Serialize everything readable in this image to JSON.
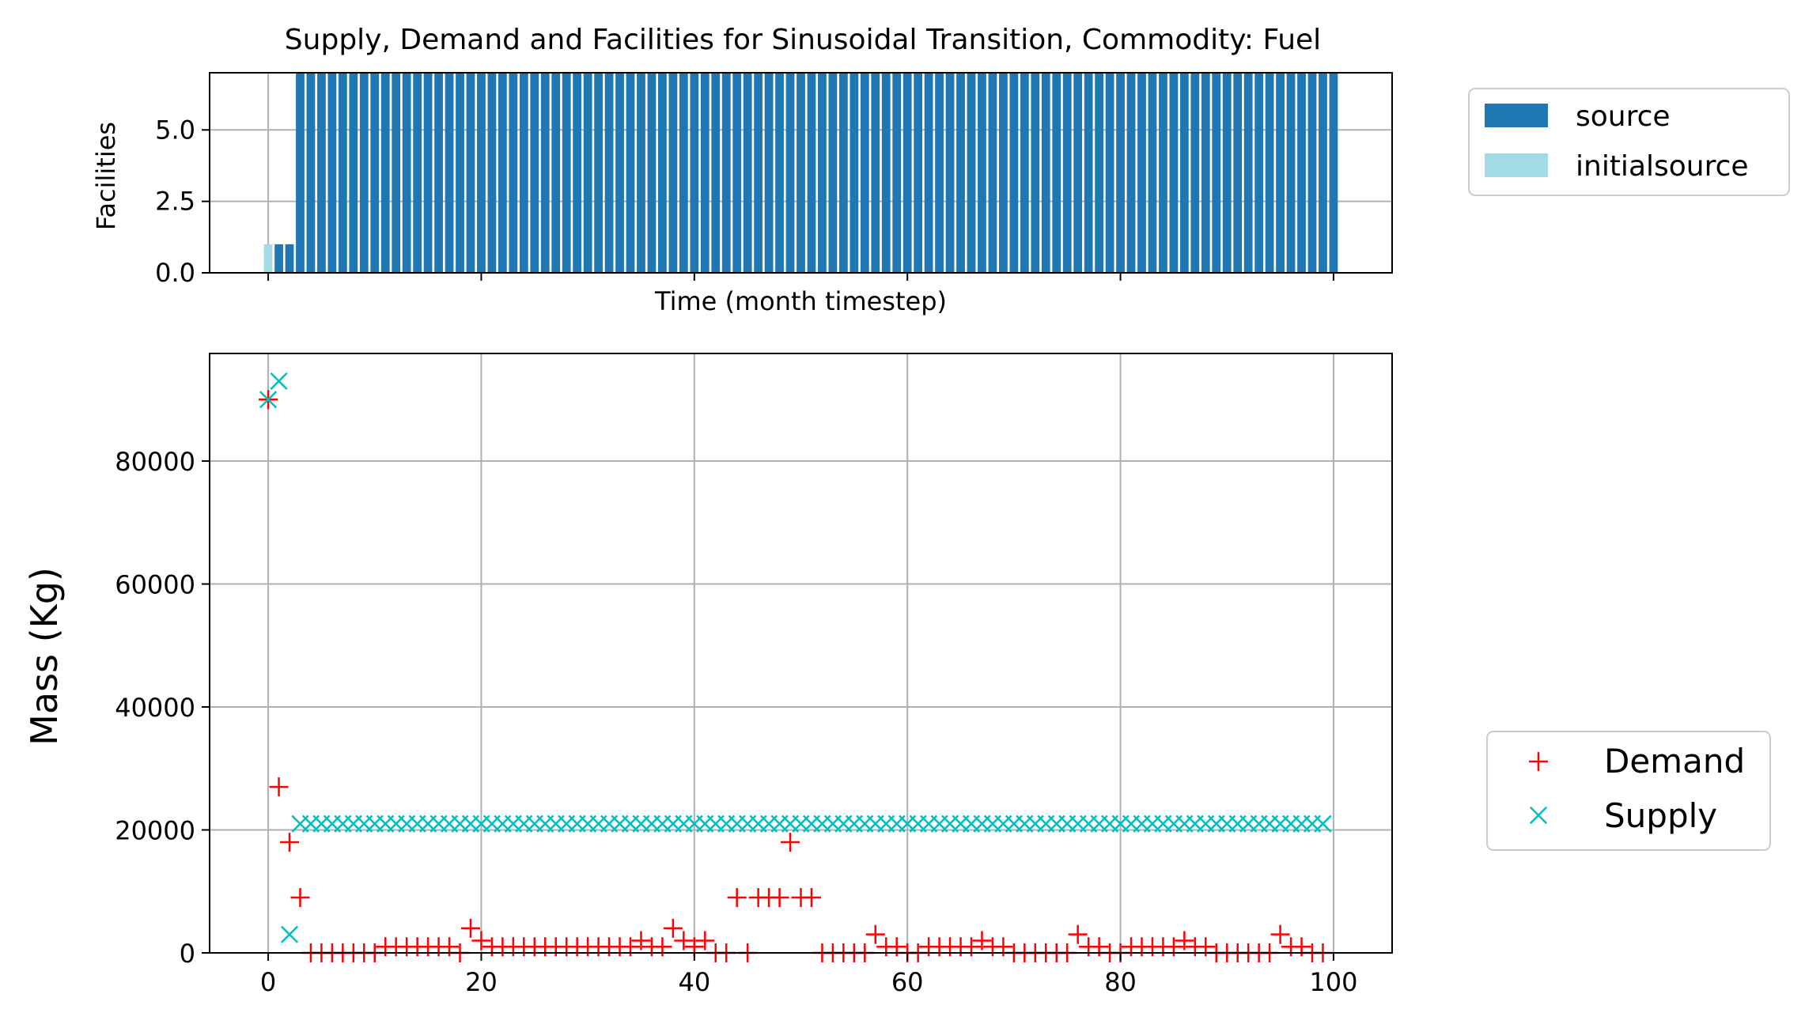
{
  "title": "Supply, Demand and Facilities for Sinusoidal Transition, Commodity: Fuel",
  "colors": {
    "source": "#1f77b4",
    "initialsource": "#a2dae6",
    "demand": "#ff0000",
    "supply": "#00bfbf",
    "grid": "#b0b0b0"
  },
  "chart_data": [
    {
      "type": "bar",
      "ylabel": "Facilities",
      "xlabel": "Time (month timestep)",
      "xlim": [
        -5.5,
        105.5
      ],
      "ylim": [
        0,
        7
      ],
      "yticks": [
        "0.0",
        "2.5",
        "5.0"
      ],
      "ytick_values": [
        0,
        2.5,
        5
      ],
      "xtick_values": [
        0,
        20,
        40,
        60,
        80,
        100
      ],
      "grid": true,
      "legend_position": "outside-top-right",
      "series": [
        {
          "name": "source",
          "start": 1,
          "end": 100,
          "values_note_levels": {
            "1": 1,
            "2": 1
          },
          "default": 7
        },
        {
          "name": "initialsource",
          "x": [
            0
          ],
          "values": [
            1
          ]
        }
      ]
    },
    {
      "type": "scatter",
      "ylabel": "Mass (Kg)",
      "xlim": [
        -5.5,
        105.5
      ],
      "ylim": [
        0,
        97500
      ],
      "yticks": [
        "0",
        "20000",
        "40000",
        "60000",
        "80000"
      ],
      "ytick_values": [
        0,
        20000,
        40000,
        60000,
        80000
      ],
      "xticks": [
        "0",
        "20",
        "40",
        "60",
        "80",
        "100"
      ],
      "xtick_values": [
        0,
        20,
        40,
        60,
        80,
        100
      ],
      "grid": true,
      "legend_position": "outside-bottom-right",
      "series": [
        {
          "name": "Demand",
          "marker": "+",
          "x": [
            0,
            1,
            2,
            3,
            4,
            5,
            6,
            7,
            8,
            9,
            10,
            11,
            12,
            13,
            14,
            15,
            16,
            17,
            18,
            19,
            20,
            21,
            22,
            23,
            24,
            25,
            26,
            27,
            28,
            29,
            30,
            31,
            32,
            33,
            34,
            35,
            36,
            37,
            38,
            39,
            40,
            41,
            42,
            43,
            44,
            45,
            46,
            47,
            48,
            49,
            50,
            51,
            52,
            53,
            54,
            55,
            56,
            57,
            58,
            59,
            60,
            61,
            62,
            63,
            64,
            65,
            66,
            67,
            68,
            69,
            70,
            71,
            72,
            73,
            74,
            75,
            76,
            77,
            78,
            79,
            80,
            81,
            82,
            83,
            84,
            85,
            86,
            87,
            88,
            89,
            90,
            91,
            92,
            93,
            94,
            95,
            96,
            97,
            98,
            99
          ],
          "values": [
            90000,
            27000,
            18000,
            9000,
            0,
            0,
            0,
            0,
            0,
            0,
            0,
            1000,
            1000,
            1000,
            1000,
            1000,
            1000,
            1000,
            0,
            4000,
            2000,
            1000,
            1000,
            1000,
            1000,
            1000,
            1000,
            1000,
            1000,
            1000,
            1000,
            1000,
            1000,
            1000,
            1000,
            2000,
            1000,
            1000,
            4000,
            2000,
            1000,
            2000,
            0,
            0,
            9000,
            0,
            9000,
            9000,
            9000,
            18000,
            9000,
            9000,
            0,
            0,
            0,
            0,
            0,
            3000,
            1000,
            1000,
            0,
            0,
            1000,
            1000,
            1000,
            1000,
            1000,
            2000,
            1000,
            1000,
            0,
            0,
            0,
            0,
            0,
            0,
            3000,
            1000,
            1000,
            0,
            0,
            1000,
            1000,
            1000,
            1000,
            1000,
            2000,
            1000,
            1000,
            0,
            0,
            0,
            0,
            0,
            0,
            3000,
            1000,
            1000,
            0,
            0
          ]
        },
        {
          "name": "Supply",
          "marker": "x",
          "x": [
            0,
            1,
            2,
            3,
            4,
            5,
            6,
            7,
            8,
            9,
            10,
            11,
            12,
            13,
            14,
            15,
            16,
            17,
            18,
            19,
            20,
            21,
            22,
            23,
            24,
            25,
            26,
            27,
            28,
            29,
            30,
            31,
            32,
            33,
            34,
            35,
            36,
            37,
            38,
            39,
            40,
            41,
            42,
            43,
            44,
            45,
            46,
            47,
            48,
            49,
            50,
            51,
            52,
            53,
            54,
            55,
            56,
            57,
            58,
            59,
            60,
            61,
            62,
            63,
            64,
            65,
            66,
            67,
            68,
            69,
            70,
            71,
            72,
            73,
            74,
            75,
            76,
            77,
            78,
            79,
            80,
            81,
            82,
            83,
            84,
            85,
            86,
            87,
            88,
            89,
            90,
            91,
            92,
            93,
            94,
            95,
            96,
            97,
            98,
            99
          ],
          "values": [
            90000,
            93000,
            3000,
            21000,
            21000,
            21000,
            21000,
            21000,
            21000,
            21000,
            21000,
            21000,
            21000,
            21000,
            21000,
            21000,
            21000,
            21000,
            21000,
            21000,
            21000,
            21000,
            21000,
            21000,
            21000,
            21000,
            21000,
            21000,
            21000,
            21000,
            21000,
            21000,
            21000,
            21000,
            21000,
            21000,
            21000,
            21000,
            21000,
            21000,
            21000,
            21000,
            21000,
            21000,
            21000,
            21000,
            21000,
            21000,
            21000,
            21000,
            21000,
            21000,
            21000,
            21000,
            21000,
            21000,
            21000,
            21000,
            21000,
            21000,
            21000,
            21000,
            21000,
            21000,
            21000,
            21000,
            21000,
            21000,
            21000,
            21000,
            21000,
            21000,
            21000,
            21000,
            21000,
            21000,
            21000,
            21000,
            21000,
            21000,
            21000,
            21000,
            21000,
            21000,
            21000,
            21000,
            21000,
            21000,
            21000,
            21000,
            21000,
            21000,
            21000,
            21000,
            21000,
            21000,
            21000,
            21000,
            21000,
            21000
          ]
        }
      ]
    }
  ],
  "legend_top": {
    "items": [
      "source",
      "initialsource"
    ]
  },
  "legend_bottom": {
    "items": [
      "Demand",
      "Supply"
    ]
  }
}
